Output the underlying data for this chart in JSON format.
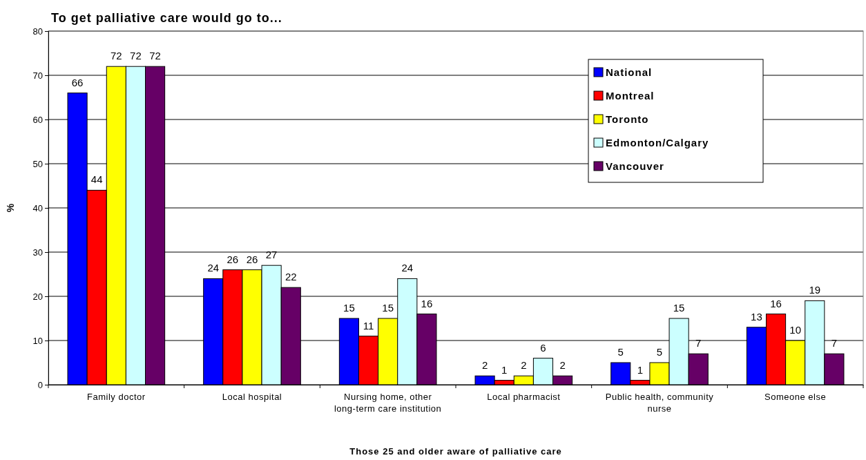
{
  "chart_data": {
    "type": "bar",
    "title": "To get palliative care would go to...",
    "xlabel": "Those 25 and older aware of palliative care",
    "ylabel": "%",
    "categories": [
      "Family doctor",
      "Local hospital",
      "Nursing home, other long-term care institution",
      "Local pharmacist",
      "Public health, community nurse",
      "Someone else"
    ],
    "series": [
      {
        "name": "National",
        "color": "#0000ff",
        "values": [
          66,
          24,
          15,
          2,
          5,
          13
        ]
      },
      {
        "name": "Montreal",
        "color": "#ff0000",
        "values": [
          44,
          26,
          11,
          1,
          1,
          16
        ]
      },
      {
        "name": "Toronto",
        "color": "#ffff00",
        "values": [
          72,
          26,
          15,
          2,
          5,
          10
        ]
      },
      {
        "name": "Edmonton/Calgary",
        "color": "#ccffff",
        "values": [
          72,
          27,
          24,
          6,
          15,
          19
        ]
      },
      {
        "name": "Vancouver",
        "color": "#660066",
        "values": [
          72,
          22,
          16,
          2,
          7,
          7
        ]
      }
    ],
    "ylim": [
      0,
      80
    ],
    "yticks": [
      0,
      10,
      20,
      30,
      40,
      50,
      60,
      70,
      80
    ],
    "grid": "y",
    "legend": "top right",
    "data_labels": true
  }
}
